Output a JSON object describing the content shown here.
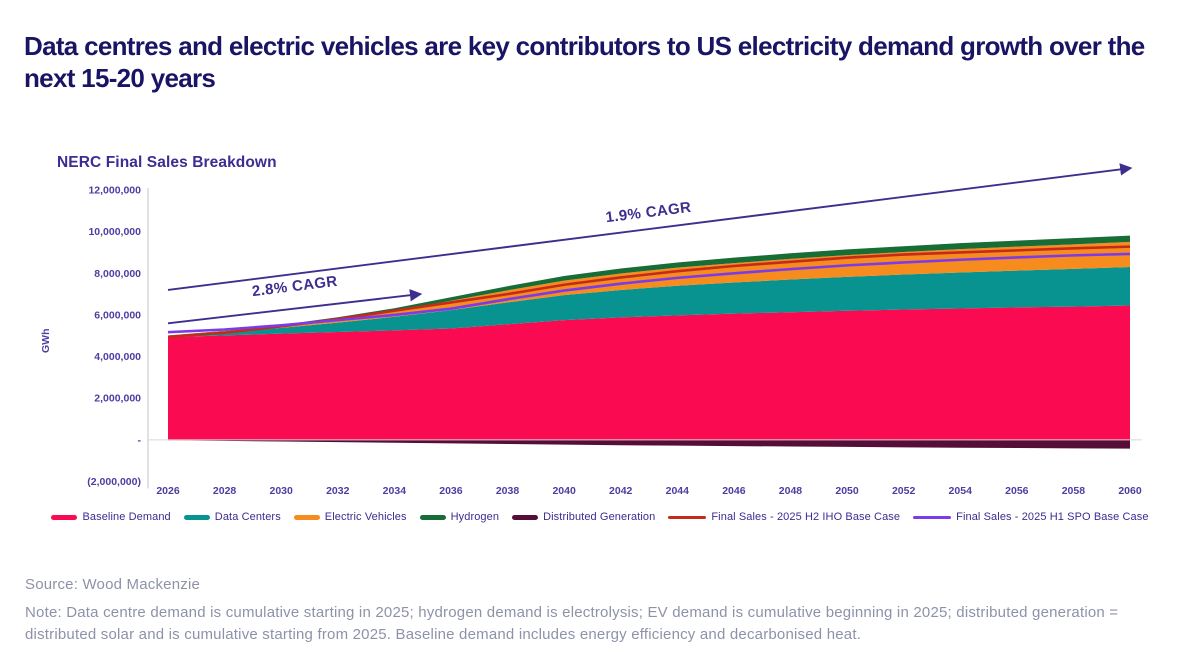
{
  "header": {
    "title": "Data centres and electric vehicles are key contributors to US electricity demand growth over the next 15-20 years"
  },
  "chart": {
    "title": "NERC Final Sales Breakdown",
    "y_axis_label": "GWh"
  },
  "chart_data": {
    "type": "area",
    "title": "NERC Final Sales Breakdown",
    "xlabel": "",
    "ylabel": "GWh",
    "ylim": [
      -2000000,
      12000000
    ],
    "grid": false,
    "legend_position": "bottom",
    "x": [
      2026,
      2028,
      2030,
      2032,
      2034,
      2036,
      2038,
      2040,
      2042,
      2044,
      2046,
      2048,
      2050,
      2052,
      2054,
      2056,
      2058,
      2060
    ],
    "y_ticks": [
      {
        "value": 12000000,
        "label": "12,000,000"
      },
      {
        "value": 10000000,
        "label": "10,000,000"
      },
      {
        "value": 8000000,
        "label": "8,000,000"
      },
      {
        "value": 6000000,
        "label": "6,000,000"
      },
      {
        "value": 4000000,
        "label": "4,000,000"
      },
      {
        "value": 2000000,
        "label": "2,000,000"
      },
      {
        "value": 0,
        "label": "-"
      },
      {
        "value": -2000000,
        "label": "(2,000,000)"
      }
    ],
    "series": [
      {
        "name": "Baseline Demand",
        "kind": "area",
        "color": "#FA0A50",
        "values": [
          4930000,
          5020000,
          5100000,
          5180000,
          5260000,
          5350000,
          5550000,
          5750000,
          5880000,
          5980000,
          6060000,
          6130000,
          6200000,
          6260000,
          6310000,
          6360000,
          6400000,
          6450000
        ]
      },
      {
        "name": "Data Centers",
        "kind": "area",
        "color": "#089390",
        "values": [
          50000,
          150000,
          280000,
          450000,
          650000,
          880000,
          1050000,
          1200000,
          1320000,
          1420000,
          1500000,
          1570000,
          1630000,
          1680000,
          1730000,
          1770000,
          1810000,
          1850000
        ]
      },
      {
        "name": "Electric Vehicles",
        "kind": "area",
        "color": "#F68B1E",
        "values": [
          20000,
          50000,
          100000,
          180000,
          280000,
          450000,
          580000,
          700000,
          790000,
          870000,
          930000,
          990000,
          1040000,
          1080000,
          1120000,
          1150000,
          1180000,
          1210000
        ]
      },
      {
        "name": "Hydrogen",
        "kind": "area",
        "color": "#186C35",
        "values": [
          10000,
          20000,
          40000,
          80000,
          130000,
          170000,
          200000,
          220000,
          240000,
          250000,
          260000,
          270000,
          280000,
          280000,
          290000,
          290000,
          300000,
          300000
        ]
      },
      {
        "name": "Distributed Generation",
        "kind": "area",
        "color": "#560E39",
        "values": [
          -20000,
          -50000,
          -80000,
          -110000,
          -140000,
          -170000,
          -200000,
          -230000,
          -260000,
          -280000,
          -300000,
          -320000,
          -340000,
          -360000,
          -380000,
          -390000,
          -410000,
          -420000
        ]
      },
      {
        "name": "Final Sales - 2025 H2 IHO Base Case",
        "kind": "line",
        "color": "#C42B1A",
        "values": [
          4950000,
          5150000,
          5450000,
          5800000,
          6200000,
          6600000,
          7000000,
          7450000,
          7800000,
          8100000,
          8350000,
          8550000,
          8750000,
          8900000,
          9000000,
          9100000,
          9200000,
          9280000
        ]
      },
      {
        "name": "Final Sales - 2025 H1 SPO Base Case",
        "kind": "line",
        "color": "#7C3BE9",
        "values": [
          5170000,
          5300000,
          5500000,
          5750000,
          6000000,
          6300000,
          6750000,
          7170000,
          7500000,
          7780000,
          8000000,
          8200000,
          8380000,
          8520000,
          8650000,
          8760000,
          8860000,
          8930000
        ]
      }
    ],
    "annotations": [
      {
        "text": "2.8% CAGR",
        "x1": 2026,
        "y1": 5600000,
        "x2": 2034.9,
        "y2": 7000000,
        "label_x": 2030.5,
        "label_y": 7150000,
        "rotate": -7
      },
      {
        "text": "1.9% CAGR",
        "x1": 2026,
        "y1": 7200000,
        "x2": 2060,
        "y2": 13050000,
        "label_x": 2043,
        "label_y": 10700000,
        "rotate": -7
      }
    ]
  },
  "footer": {
    "source": "Source: Wood Mackenzie",
    "note": "Note: Data centre demand is cumulative starting in 2025; hydrogen demand is electrolysis; EV demand is cumulative beginning in 2025; distributed generation = distributed solar and is cumulative starting from 2025. Baseline demand includes energy efficiency and decarbonised heat."
  }
}
